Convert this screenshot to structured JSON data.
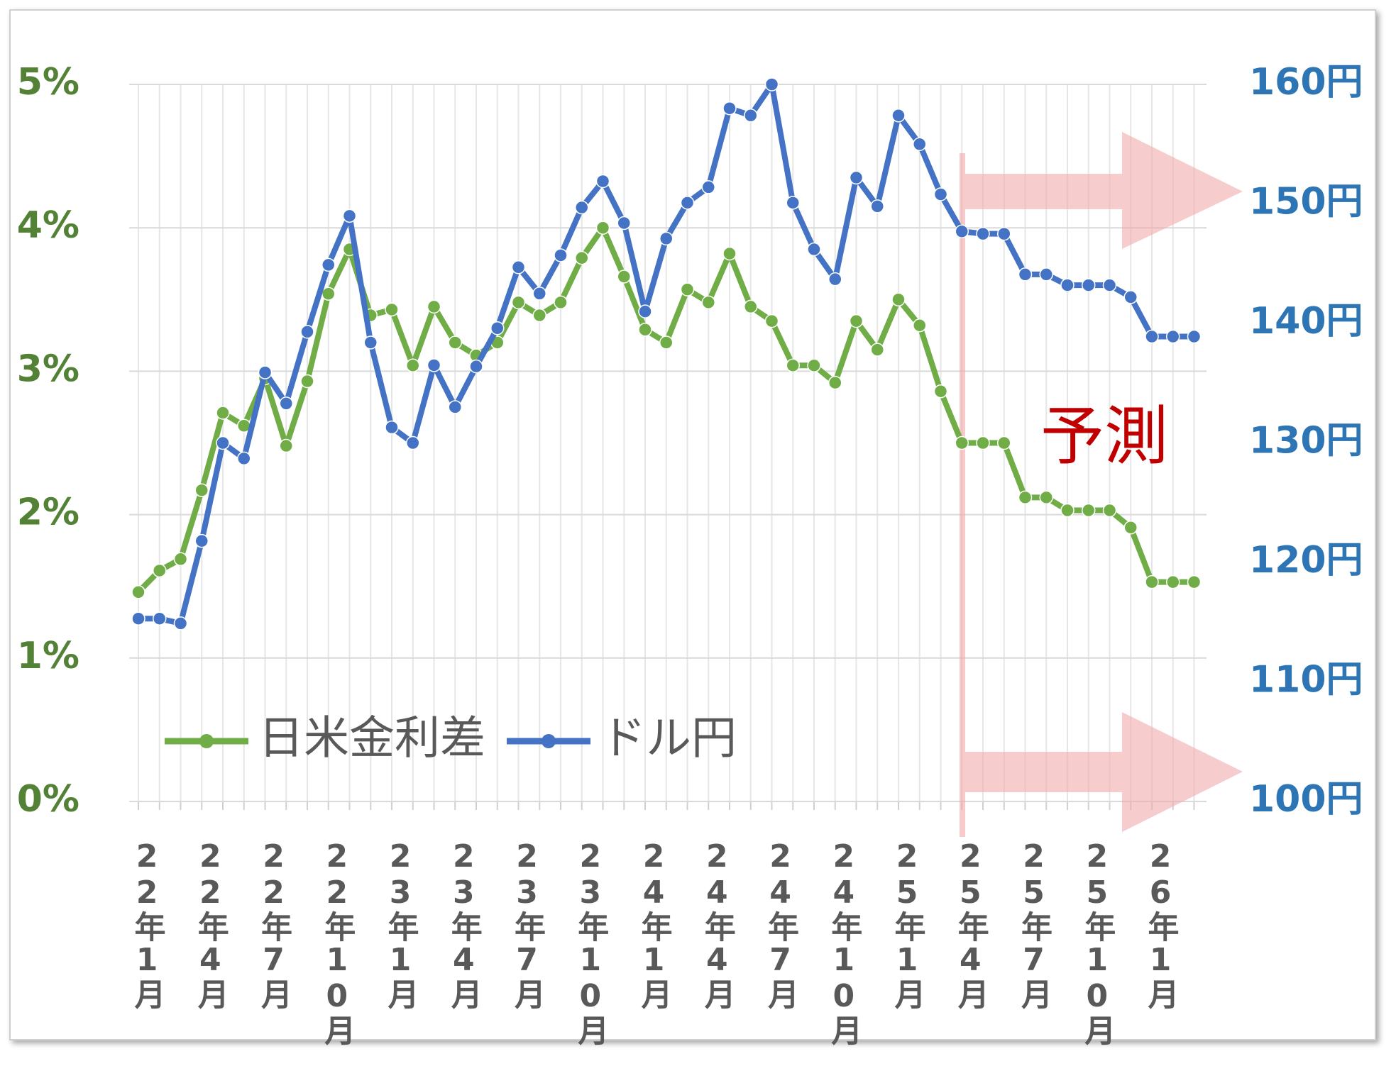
{
  "chart_data": {
    "type": "line",
    "categories": [
      "22年1月",
      null,
      null,
      "22年4月",
      null,
      null,
      "22年7月",
      null,
      null,
      "22年10月",
      null,
      null,
      "23年1月",
      null,
      null,
      "23年4月",
      null,
      null,
      "23年7月",
      null,
      null,
      "23年10月",
      null,
      null,
      "24年1月",
      null,
      null,
      "24年4月",
      null,
      null,
      "24年7月",
      null,
      null,
      "24年10月",
      null,
      null,
      "25年1月",
      null,
      null,
      "25年4月",
      null,
      null,
      "25年7月",
      null,
      null,
      "25年10月",
      null,
      null,
      "26年1月",
      null,
      null
    ],
    "series": [
      {
        "name": "日米金利差",
        "color": "#70ad47",
        "axis": "y",
        "values": [
          1.46,
          1.61,
          1.69,
          2.17,
          2.71,
          2.62,
          2.95,
          2.48,
          2.93,
          3.54,
          3.85,
          3.39,
          3.43,
          3.04,
          3.45,
          3.2,
          3.11,
          3.2,
          3.48,
          3.39,
          3.48,
          3.79,
          4.0,
          3.66,
          3.29,
          3.2,
          3.57,
          3.48,
          3.82,
          3.45,
          3.35,
          3.04,
          3.04,
          2.92,
          3.35,
          3.15,
          3.5,
          3.32,
          2.86,
          2.5,
          2.5,
          2.5,
          2.12,
          2.12,
          2.03,
          2.03,
          2.03,
          1.91,
          1.53,
          1.53,
          1.53
        ]
      },
      {
        "name": "ドル円",
        "color": "#4472c4",
        "axis": "y2",
        "values": [
          115.3,
          115.3,
          114.9,
          121.8,
          130,
          128.7,
          135.9,
          133.3,
          139.3,
          144.9,
          149,
          138.4,
          131.3,
          130,
          136.5,
          133,
          136.4,
          139.6,
          144.7,
          142.5,
          145.7,
          149.7,
          151.9,
          148.4,
          141,
          147.1,
          150.1,
          151.4,
          158,
          157.4,
          160,
          150.1,
          146.2,
          143.7,
          152.2,
          149.8,
          157.4,
          155,
          150.8,
          147.7,
          147.5,
          147.5,
          144.1,
          144.1,
          143.2,
          143.2,
          143.2,
          142.2,
          138.9,
          138.9,
          138.9
        ]
      }
    ],
    "ylim": [
      0,
      5
    ],
    "yticks": [
      {
        "value": 0,
        "label": "0%"
      },
      {
        "value": 1,
        "label": "1%"
      },
      {
        "value": 2,
        "label": "2%"
      },
      {
        "value": 3,
        "label": "3%"
      },
      {
        "value": 4,
        "label": "4%"
      },
      {
        "value": 5,
        "label": "5%"
      }
    ],
    "y2lim": [
      100,
      160
    ],
    "y2ticks": [
      {
        "value": 100,
        "label": "100円"
      },
      {
        "value": 110,
        "label": "110円"
      },
      {
        "value": 120,
        "label": "120円"
      },
      {
        "value": 130,
        "label": "130円"
      },
      {
        "value": 140,
        "label": "140円"
      },
      {
        "value": 150,
        "label": "150円"
      },
      {
        "value": 160,
        "label": "160円"
      }
    ],
    "annotations": [
      "予測"
    ],
    "grid": true,
    "legend": "lower left"
  }
}
